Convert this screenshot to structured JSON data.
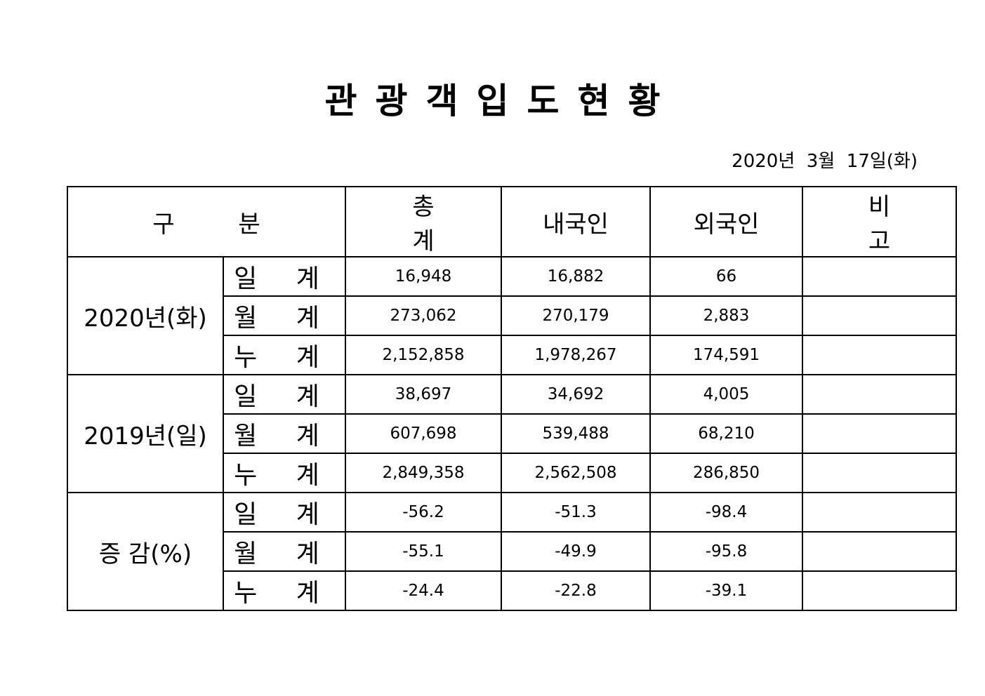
{
  "document": {
    "title": "관광객입도현황",
    "date": "2020년  3월  17일(화)"
  },
  "table": {
    "headers": {
      "category": "구 분",
      "total": "총 계",
      "domestic": "내국인",
      "foreign": "외국인",
      "remarks": "비 고"
    },
    "groups": [
      {
        "label": "2020년(화)",
        "rows": [
          {
            "label": "일 계",
            "total": "16,948",
            "domestic": "16,882",
            "foreign": "66",
            "remarks": ""
          },
          {
            "label": "월 계",
            "total": "273,062",
            "domestic": "270,179",
            "foreign": "2,883",
            "remarks": ""
          },
          {
            "label": "누 계",
            "total": "2,152,858",
            "domestic": "1,978,267",
            "foreign": "174,591",
            "remarks": ""
          }
        ]
      },
      {
        "label": "2019년(일)",
        "rows": [
          {
            "label": "일 계",
            "total": "38,697",
            "domestic": "34,692",
            "foreign": "4,005",
            "remarks": ""
          },
          {
            "label": "월 계",
            "total": "607,698",
            "domestic": "539,488",
            "foreign": "68,210",
            "remarks": ""
          },
          {
            "label": "누 계",
            "total": "2,849,358",
            "domestic": "2,562,508",
            "foreign": "286,850",
            "remarks": ""
          }
        ]
      },
      {
        "label": "증 감(%)",
        "rows": [
          {
            "label": "일 계",
            "total": "-56.2",
            "domestic": "-51.3",
            "foreign": "-98.4",
            "remarks": ""
          },
          {
            "label": "월 계",
            "total": "-55.1",
            "domestic": "-49.9",
            "foreign": "-95.8",
            "remarks": ""
          },
          {
            "label": "누 계",
            "total": "-24.4",
            "domestic": "-22.8",
            "foreign": "-39.1",
            "remarks": ""
          }
        ]
      }
    ]
  }
}
